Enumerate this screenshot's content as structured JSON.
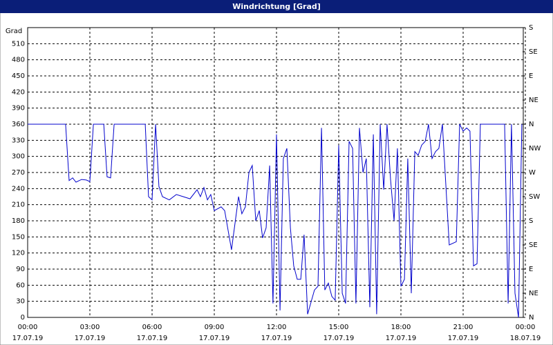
{
  "chart_data": {
    "type": "line",
    "title": "Windrichtung [Grad]",
    "y_label": "Grad",
    "xlim": [
      0,
      24
    ],
    "xticks": [
      {
        "value": 0,
        "label": "00:00"
      },
      {
        "value": 3,
        "label": "03:00"
      },
      {
        "value": 6,
        "label": "06:00"
      },
      {
        "value": 9,
        "label": "09:00"
      },
      {
        "value": 12,
        "label": "12:00"
      },
      {
        "value": 15,
        "label": "15:00"
      },
      {
        "value": 18,
        "label": "18:00"
      },
      {
        "value": 21,
        "label": "21:00"
      },
      {
        "value": 24,
        "label": "00:00"
      }
    ],
    "xtick_dates": [
      "17.07.19",
      "17.07.19",
      "17.07.19",
      "17.07.19",
      "17.07.19",
      "17.07.19",
      "17.07.19",
      "17.07.19",
      "18.07.19"
    ],
    "ylim": [
      0,
      540
    ],
    "yticks": [
      0,
      30,
      60,
      90,
      120,
      150,
      180,
      210,
      240,
      270,
      300,
      330,
      360,
      390,
      420,
      450,
      480,
      510
    ],
    "y2lim": [
      0,
      540
    ],
    "y2ticks": [
      {
        "value": 0,
        "label": "N"
      },
      {
        "value": 45,
        "label": "NE"
      },
      {
        "value": 90,
        "label": "E"
      },
      {
        "value": 135,
        "label": "SE"
      },
      {
        "value": 180,
        "label": "S"
      },
      {
        "value": 225,
        "label": "SW"
      },
      {
        "value": 270,
        "label": "W"
      },
      {
        "value": 315,
        "label": "NW"
      },
      {
        "value": 360,
        "label": "N"
      },
      {
        "value": 405,
        "label": "NE"
      },
      {
        "value": 450,
        "label": "E"
      },
      {
        "value": 495,
        "label": "SE"
      },
      {
        "value": 540,
        "label": "S"
      }
    ],
    "grid": true,
    "x": [
      0,
      1.83,
      2.0,
      2.17,
      2.33,
      2.6,
      2.83,
      3.0,
      3.17,
      3.67,
      3.83,
      4.0,
      4.17,
      5.67,
      5.83,
      6.0,
      6.17,
      6.33,
      6.5,
      6.83,
      7.17,
      7.5,
      7.83,
      8.17,
      8.33,
      8.5,
      8.67,
      8.83,
      9.0,
      9.33,
      9.5,
      9.83,
      10.17,
      10.33,
      10.5,
      10.67,
      10.83,
      11.0,
      11.17,
      11.33,
      11.5,
      11.67,
      11.83,
      12.0,
      12.17,
      12.33,
      12.5,
      12.67,
      12.83,
      13.0,
      13.17,
      13.33,
      13.5,
      13.83,
      14.0,
      14.17,
      14.33,
      14.5,
      14.67,
      14.83,
      15.0,
      15.17,
      15.33,
      15.5,
      15.67,
      15.83,
      16.0,
      16.17,
      16.33,
      16.5,
      16.67,
      16.83,
      17.0,
      17.17,
      17.33,
      17.5,
      17.67,
      17.83,
      18.0,
      18.17,
      18.33,
      18.5,
      18.67,
      18.83,
      19.0,
      19.17,
      19.33,
      19.5,
      19.67,
      19.83,
      20.0,
      20.33,
      20.67,
      20.83,
      21.0,
      21.17,
      21.33,
      21.5,
      21.67,
      21.83,
      23.0,
      23.17,
      23.33,
      23.5,
      23.67,
      23.83
    ],
    "series": [
      {
        "color": "#0000cc",
        "values": [
          360,
          360,
          255,
          260,
          252,
          257,
          256,
          253,
          360,
          360,
          262,
          260,
          360,
          360,
          225,
          219,
          360,
          244,
          225,
          219,
          229,
          225,
          221,
          238,
          225,
          242,
          219,
          229,
          199,
          206,
          199,
          126,
          225,
          193,
          206,
          270,
          283,
          180,
          199,
          148,
          167,
          283,
          26,
          341,
          13,
          296,
          315,
          167,
          96,
          71,
          71,
          154,
          6,
          51,
          58,
          353,
          51,
          64,
          39,
          32,
          321,
          45,
          26,
          328,
          315,
          26,
          353,
          270,
          296,
          19,
          341,
          6,
          360,
          238,
          360,
          257,
          180,
          315,
          58,
          71,
          296,
          45,
          309,
          302,
          321,
          328,
          360,
          296,
          309,
          315,
          360,
          135,
          141,
          360,
          347,
          353,
          347,
          96,
          100,
          360,
          360,
          26,
          360,
          45,
          0,
          360
        ]
      }
    ]
  }
}
